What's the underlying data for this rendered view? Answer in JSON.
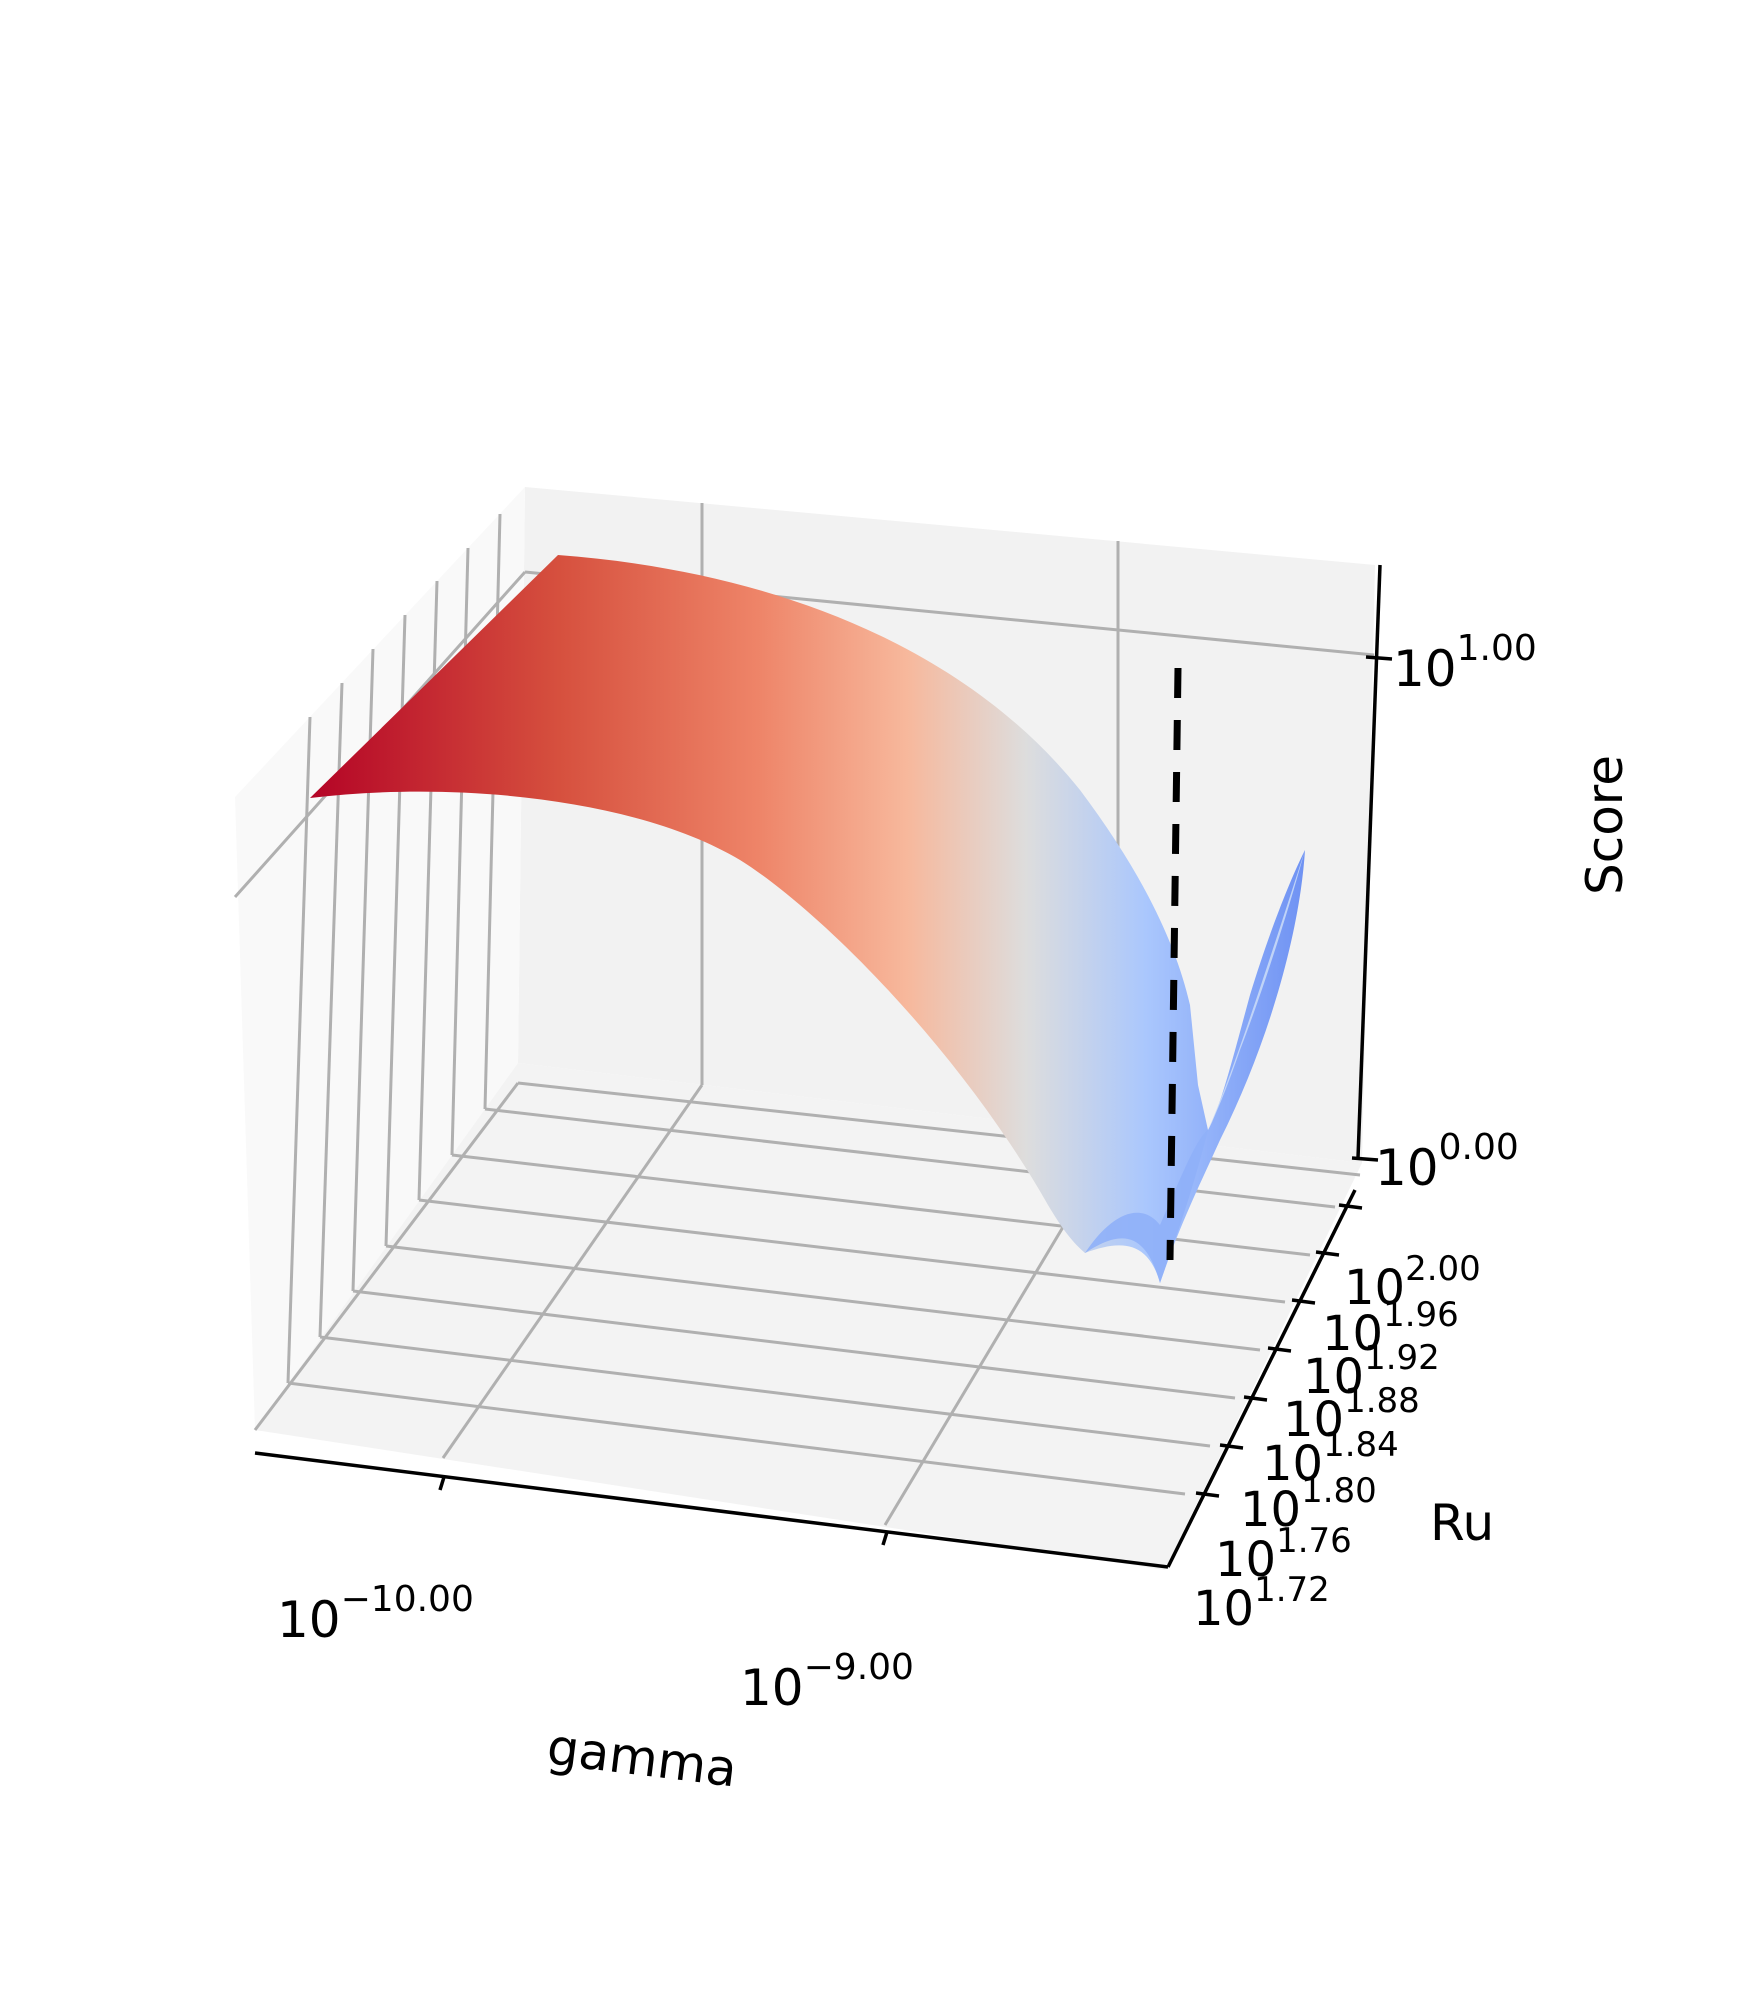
{
  "chart_data": {
    "type": "surface3d",
    "title": "",
    "xlabel": "gamma",
    "ylabel": "Ru",
    "zlabel": "Score",
    "x_scale": "log",
    "y_scale": "log",
    "z_scale": "log",
    "x_ticks": [
      {
        "base": "10",
        "exp": "−10.00",
        "value": 1e-10
      },
      {
        "base": "10",
        "exp": "−9.00",
        "value": 1e-09
      }
    ],
    "y_ticks": [
      {
        "base": "10",
        "exp": "2.00",
        "value": 100.0
      },
      {
        "base": "10",
        "exp": "1.96",
        "value": 91.2
      },
      {
        "base": "10",
        "exp": "1.92",
        "value": 83.2
      },
      {
        "base": "10",
        "exp": "1.88",
        "value": 75.9
      },
      {
        "base": "10",
        "exp": "1.84",
        "value": 69.2
      },
      {
        "base": "10",
        "exp": "1.80",
        "value": 63.1
      },
      {
        "base": "10",
        "exp": "1.76",
        "value": 57.5
      },
      {
        "base": "10",
        "exp": "1.72",
        "value": 52.5
      }
    ],
    "z_ticks": [
      {
        "base": "10",
        "exp": "1.00",
        "value": 10.0
      },
      {
        "base": "10",
        "exp": "0.00",
        "value": 1.0
      }
    ],
    "colormap": "coolwarm",
    "colormap_stops": [
      "#3b4cc0",
      "#6f92f3",
      "#aac7fd",
      "#dddddd",
      "#f7b89c",
      "#e7745b",
      "#b40426"
    ],
    "surface_trend": "Score is highest (about 10^0.75) at the smallest gamma and decreases as gamma grows, with a sharp minimum near 10^0.0 around gamma 10^-8.7 before rising again at the largest gamma",
    "marker": {
      "type": "dashed vertical line",
      "color": "#000000"
    },
    "grid": true
  }
}
